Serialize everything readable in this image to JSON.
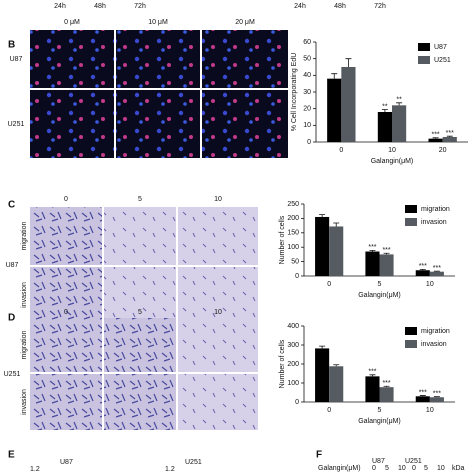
{
  "header": {
    "time_labels": [
      "24h",
      "48h",
      "72h",
      "24h",
      "48h",
      "72h"
    ]
  },
  "panels": {
    "B": {
      "label": "B",
      "columns": [
        "0 μM",
        "10 μM",
        "20 μM"
      ],
      "rows": [
        "U87",
        "U251"
      ]
    },
    "C": {
      "label": "C",
      "columns": [
        "0",
        "5",
        "10"
      ],
      "rows": [
        "migration",
        "invasion"
      ],
      "cell": "U87"
    },
    "D": {
      "label": "D",
      "columns": [
        "0",
        "5",
        "10"
      ],
      "rows": [
        "migration",
        "invasion"
      ],
      "cell": "U251"
    },
    "E": {
      "label": "E",
      "texts": [
        "U87",
        "1.2",
        "U251",
        "1.2"
      ]
    },
    "F": {
      "label": "F",
      "texts": [
        "U87",
        "U251",
        "Galangin(μM)",
        "0",
        "5",
        "10",
        "0",
        "5",
        "10",
        "kDa"
      ]
    }
  },
  "chart_data": [
    {
      "type": "bar",
      "ylabel": "% Cell Incorporating EdU",
      "xlabel": "Galangin(μM)",
      "categories": [
        "0",
        "10",
        "20"
      ],
      "ylim": [
        0,
        60
      ],
      "yticks": [
        0,
        10,
        20,
        30,
        40,
        50,
        60
      ],
      "legend": "top-right",
      "series": [
        {
          "name": "U87",
          "color": "#000000",
          "values": [
            38,
            18,
            2
          ],
          "errors": [
            3,
            1.5,
            0.5
          ],
          "marks": [
            null,
            "**",
            "***"
          ]
        },
        {
          "name": "U251",
          "color": "#555b60",
          "values": [
            45,
            22,
            3
          ],
          "errors": [
            5,
            1.5,
            0.5
          ],
          "marks": [
            null,
            "**",
            "***"
          ]
        }
      ]
    },
    {
      "type": "bar",
      "ylabel": "Number of cells",
      "xlabel": "Galangin(μM)",
      "categories": [
        "0",
        "5",
        "10"
      ],
      "ylim": [
        0,
        250
      ],
      "yticks": [
        0,
        50,
        100,
        150,
        200,
        250
      ],
      "legend": "top-right",
      "series": [
        {
          "name": "migration",
          "color": "#000000",
          "values": [
            205,
            85,
            20
          ],
          "errors": [
            8,
            4,
            3
          ],
          "marks": [
            null,
            "***",
            "***"
          ]
        },
        {
          "name": "invasion",
          "color": "#555b60",
          "values": [
            172,
            75,
            15
          ],
          "errors": [
            12,
            4,
            2
          ],
          "marks": [
            null,
            "***",
            "***"
          ]
        }
      ]
    },
    {
      "type": "bar",
      "ylabel": "Number of cells",
      "xlabel": "Galangin(μM)",
      "categories": [
        "0",
        "5",
        "10"
      ],
      "ylim": [
        0,
        400
      ],
      "yticks": [
        0,
        100,
        200,
        300,
        400
      ],
      "legend": "top-right",
      "series": [
        {
          "name": "migration",
          "color": "#000000",
          "values": [
            282,
            135,
            30
          ],
          "errors": [
            12,
            8,
            4
          ],
          "marks": [
            null,
            "***",
            "***"
          ]
        },
        {
          "name": "invasion",
          "color": "#555b60",
          "values": [
            188,
            78,
            25
          ],
          "errors": [
            8,
            5,
            3
          ],
          "marks": [
            null,
            "***",
            "***"
          ]
        }
      ]
    }
  ]
}
